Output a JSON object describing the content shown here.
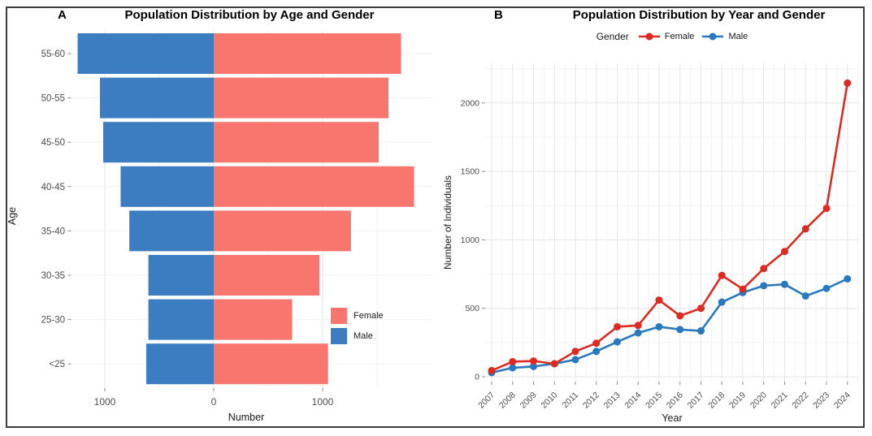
{
  "figure": {
    "background": "#ffffff",
    "border_color": "#3d3d3d"
  },
  "colors": {
    "bar_female": "#F8766D",
    "bar_male": "#3C7DC1",
    "line_female": "#DD2A23",
    "line_male": "#2979BE",
    "grid_major": "#E5E5E5",
    "grid_minor": "#F2F2F2",
    "tick_text": "#4D4D4D",
    "axis_text": "#1A1A1A"
  },
  "panel_a": {
    "tag": "A",
    "title": "Population Distribution by Age and Gender",
    "xlabel": "Number",
    "ylabel": "Age",
    "legend": {
      "female": "Female",
      "male": "Male"
    }
  },
  "panel_b": {
    "tag": "B",
    "title": "Population Distribution by Year and Gender",
    "xlabel": "Year",
    "ylabel": "Number of Individuals",
    "legend_title": "Gender",
    "legend": {
      "female": "Female",
      "male": "Male"
    }
  },
  "chart_data": [
    {
      "type": "bar",
      "variant": "population-pyramid",
      "title": "Population Distribution by Age and Gender",
      "categories": [
        "55-60",
        "50-55",
        "45-50",
        "40-45",
        "35-40",
        "30-35",
        "25-30",
        "<25"
      ],
      "series": [
        {
          "name": "Male",
          "color": "#3C7DC1",
          "values": [
            1250,
            1045,
            1015,
            855,
            775,
            600,
            600,
            620
          ]
        },
        {
          "name": "Female",
          "color": "#F8766D",
          "values": [
            1720,
            1605,
            1515,
            1840,
            1260,
            970,
            720,
            1050
          ]
        }
      ],
      "xlabel": "Number",
      "ylabel": "Age",
      "xlim": [
        -1400,
        2000
      ],
      "x_tick_values": [
        -1000,
        0,
        1000
      ],
      "x_tick_labels": [
        "1000",
        "0",
        "1000"
      ],
      "x_grid_values": [
        -1000,
        -500,
        0,
        500,
        1000,
        1500
      ],
      "grid": true,
      "legend_position": "right-middle"
    },
    {
      "type": "line",
      "title": "Population Distribution by Year and Gender",
      "x": [
        2007,
        2008,
        2009,
        2010,
        2011,
        2012,
        2013,
        2014,
        2015,
        2016,
        2017,
        2018,
        2019,
        2020,
        2021,
        2022,
        2023,
        2024
      ],
      "series": [
        {
          "name": "Male",
          "color": "#2979BE",
          "values": [
            30,
            65,
            75,
            95,
            125,
            185,
            255,
            320,
            365,
            345,
            335,
            545,
            615,
            665,
            675,
            590,
            645,
            715
          ]
        },
        {
          "name": "Female",
          "color": "#DD2A23",
          "values": [
            45,
            110,
            115,
            95,
            185,
            245,
            365,
            375,
            560,
            445,
            500,
            740,
            640,
            790,
            915,
            1080,
            1230,
            2145
          ]
        }
      ],
      "xlabel": "Year",
      "ylabel": "Number of Individuals",
      "ylim": [
        0,
        2250
      ],
      "y_tick_values": [
        0,
        500,
        1000,
        1500,
        2000
      ],
      "y_minor_values": [
        250,
        750,
        1250,
        1750,
        2250
      ],
      "grid": true,
      "legend_position": "top"
    }
  ]
}
